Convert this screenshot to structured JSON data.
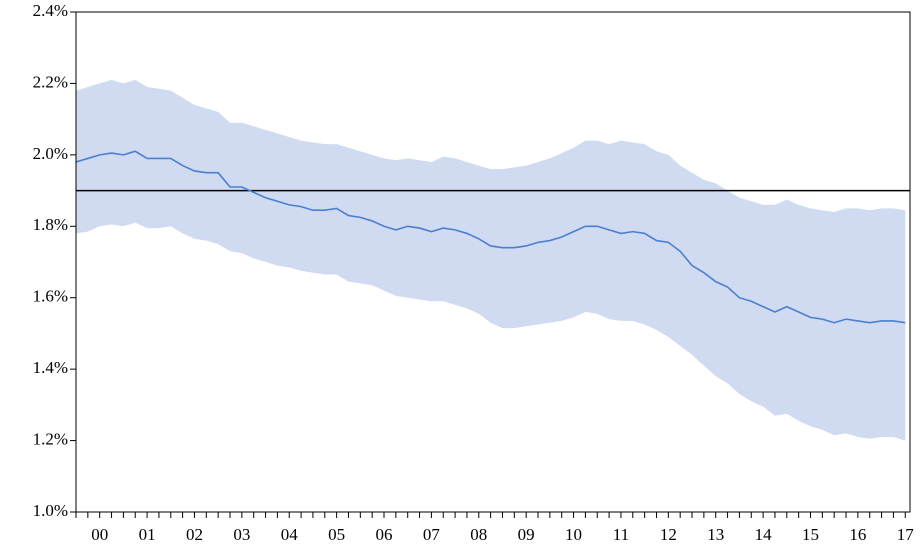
{
  "chart_data": {
    "type": "line",
    "x": [
      0,
      0.25,
      0.5,
      0.75,
      1,
      1.25,
      1.5,
      1.75,
      2,
      2.25,
      2.5,
      2.75,
      3,
      3.25,
      3.5,
      3.75,
      4,
      4.25,
      4.5,
      4.75,
      5,
      5.25,
      5.5,
      5.75,
      6,
      6.25,
      6.5,
      6.75,
      7,
      7.25,
      7.5,
      7.75,
      8,
      8.25,
      8.5,
      8.75,
      9,
      9.25,
      9.5,
      9.75,
      10,
      10.25,
      10.5,
      10.75,
      11,
      11.25,
      11.5,
      11.75,
      12,
      12.25,
      12.5,
      12.75,
      13,
      13.25,
      13.5,
      13.75,
      14,
      14.25,
      14.5,
      14.75,
      15,
      15.25,
      15.5,
      15.75,
      16,
      16.25,
      16.5,
      16.75,
      17,
      17.25,
      17.5
    ],
    "series": [
      {
        "color": "#4a7fd0",
        "values": [
          1.98,
          1.99,
          2.0,
          2.005,
          2.0,
          2.01,
          1.99,
          1.99,
          1.99,
          1.97,
          1.955,
          1.95,
          1.95,
          1.91,
          1.91,
          1.895,
          1.88,
          1.87,
          1.86,
          1.855,
          1.845,
          1.845,
          1.85,
          1.83,
          1.825,
          1.815,
          1.8,
          1.79,
          1.8,
          1.795,
          1.785,
          1.795,
          1.79,
          1.78,
          1.765,
          1.745,
          1.74,
          1.74,
          1.745,
          1.755,
          1.76,
          1.77,
          1.785,
          1.8,
          1.8,
          1.79,
          1.78,
          1.785,
          1.78,
          1.76,
          1.755,
          1.73,
          1.69,
          1.67,
          1.645,
          1.63,
          1.6,
          1.59,
          1.575,
          1.56,
          1.575,
          1.56,
          1.545,
          1.54,
          1.53,
          1.54,
          1.535,
          1.53,
          1.535,
          1.535,
          1.53
        ]
      }
    ],
    "band": {
      "color": "#d0dbf1",
      "upper": [
        2.18,
        2.19,
        2.2,
        2.21,
        2.2,
        2.21,
        2.19,
        2.185,
        2.18,
        2.16,
        2.14,
        2.13,
        2.12,
        2.09,
        2.09,
        2.08,
        2.07,
        2.06,
        2.05,
        2.04,
        2.035,
        2.03,
        2.03,
        2.02,
        2.01,
        2.0,
        1.99,
        1.985,
        1.99,
        1.985,
        1.98,
        1.995,
        1.99,
        1.98,
        1.97,
        1.96,
        1.96,
        1.965,
        1.97,
        1.98,
        1.99,
        2.005,
        2.02,
        2.04,
        2.04,
        2.03,
        2.04,
        2.035,
        2.03,
        2.01,
        2.0,
        1.97,
        1.95,
        1.93,
        1.92,
        1.9,
        1.88,
        1.87,
        1.86,
        1.86,
        1.875,
        1.86,
        1.85,
        1.845,
        1.84,
        1.85,
        1.85,
        1.845,
        1.85,
        1.85,
        1.845
      ],
      "lower": [
        1.78,
        1.785,
        1.8,
        1.805,
        1.8,
        1.81,
        1.795,
        1.795,
        1.8,
        1.78,
        1.765,
        1.76,
        1.75,
        1.73,
        1.725,
        1.71,
        1.7,
        1.69,
        1.685,
        1.675,
        1.67,
        1.665,
        1.665,
        1.645,
        1.64,
        1.635,
        1.62,
        1.605,
        1.6,
        1.595,
        1.59,
        1.59,
        1.58,
        1.57,
        1.555,
        1.53,
        1.515,
        1.515,
        1.52,
        1.525,
        1.53,
        1.535,
        1.545,
        1.56,
        1.555,
        1.54,
        1.535,
        1.535,
        1.525,
        1.51,
        1.49,
        1.465,
        1.44,
        1.41,
        1.38,
        1.36,
        1.33,
        1.31,
        1.295,
        1.27,
        1.275,
        1.255,
        1.24,
        1.23,
        1.215,
        1.22,
        1.21,
        1.205,
        1.21,
        1.21,
        1.2
      ]
    },
    "hline": {
      "value": 1.9,
      "color": "#000000"
    },
    "xlim": [
      0,
      17.6
    ],
    "xticks": [
      {
        "value": 0.5,
        "label": "00"
      },
      {
        "value": 1.5,
        "label": "01"
      },
      {
        "value": 2.5,
        "label": "02"
      },
      {
        "value": 3.5,
        "label": "03"
      },
      {
        "value": 4.5,
        "label": "04"
      },
      {
        "value": 5.5,
        "label": "05"
      },
      {
        "value": 6.5,
        "label": "06"
      },
      {
        "value": 7.5,
        "label": "07"
      },
      {
        "value": 8.5,
        "label": "08"
      },
      {
        "value": 9.5,
        "label": "09"
      },
      {
        "value": 10.5,
        "label": "10"
      },
      {
        "value": 11.5,
        "label": "11"
      },
      {
        "value": 12.5,
        "label": "12"
      },
      {
        "value": 13.5,
        "label": "13"
      },
      {
        "value": 14.5,
        "label": "14"
      },
      {
        "value": 15.5,
        "label": "15"
      },
      {
        "value": 16.5,
        "label": "16"
      },
      {
        "value": 17.5,
        "label": "17"
      }
    ],
    "ylim": [
      1.0,
      2.4
    ],
    "yticks": [
      {
        "value": 1.0,
        "label": "1.0%"
      },
      {
        "value": 1.2,
        "label": "1.2%"
      },
      {
        "value": 1.4,
        "label": "1.4%"
      },
      {
        "value": 1.6,
        "label": "1.6%"
      },
      {
        "value": 1.8,
        "label": "1.8%"
      },
      {
        "value": 2.0,
        "label": "2.0%"
      },
      {
        "value": 2.2,
        "label": "2.2%"
      },
      {
        "value": 2.4,
        "label": "2.4%"
      }
    ]
  }
}
